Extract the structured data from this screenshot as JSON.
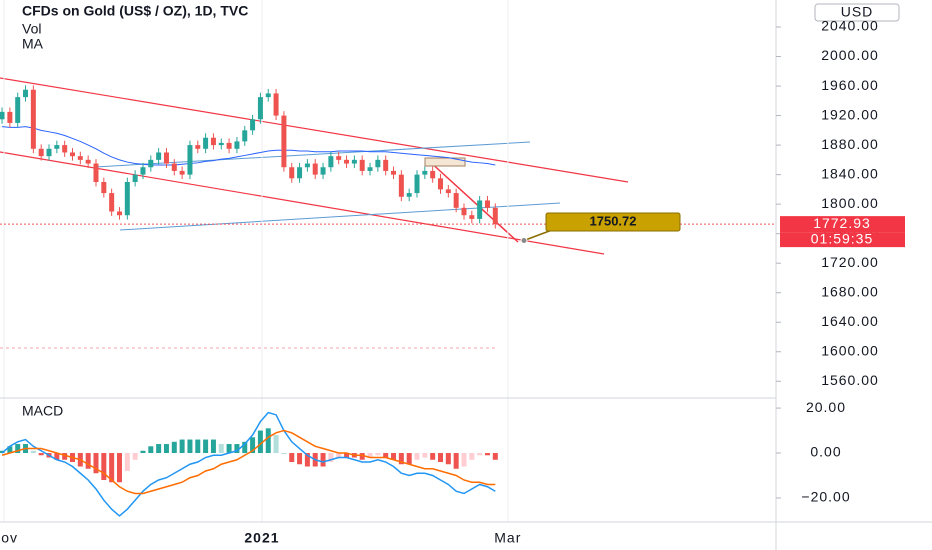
{
  "chart_data": [
    {
      "type": "candlestick",
      "title": "CFDs on Gold (US$ / OZ), 1D, TVC",
      "volume_label": "Vol",
      "currency": "USD",
      "up_color": "#26a69a",
      "down_color": "#ef5350",
      "open": [
        1915,
        1925,
        1910,
        1945,
        1955,
        1875,
        1865,
        1875,
        1880,
        1870,
        1865,
        1860,
        1855,
        1830,
        1815,
        1790,
        1785,
        1830,
        1840,
        1850,
        1860,
        1870,
        1855,
        1845,
        1840,
        1880,
        1875,
        1890,
        1880,
        1883,
        1875,
        1885,
        1900,
        1915,
        1945,
        1950,
        1920,
        1850,
        1835,
        1850,
        1855,
        1840,
        1850,
        1865,
        1860,
        1855,
        1860,
        1845,
        1850,
        1860,
        1845,
        1840,
        1810,
        1815,
        1840,
        1845,
        1835,
        1820,
        1815,
        1795,
        1785,
        1780,
        1805,
        1795
      ],
      "high": [
        1931,
        1931,
        1951,
        1961,
        1961,
        1881,
        1881,
        1886,
        1886,
        1876,
        1871,
        1866,
        1861,
        1836,
        1821,
        1796,
        1836,
        1846,
        1856,
        1866,
        1876,
        1876,
        1861,
        1851,
        1886,
        1886,
        1896,
        1896,
        1889,
        1889,
        1891,
        1906,
        1921,
        1951,
        1956,
        1956,
        1926,
        1856,
        1856,
        1861,
        1861,
        1856,
        1871,
        1871,
        1866,
        1866,
        1866,
        1856,
        1866,
        1866,
        1851,
        1846,
        1821,
        1846,
        1851,
        1851,
        1841,
        1826,
        1821,
        1801,
        1791,
        1811,
        1811,
        1801
      ],
      "low": [
        1909,
        1904,
        1904,
        1939,
        1869,
        1859,
        1859,
        1869,
        1864,
        1859,
        1854,
        1849,
        1824,
        1809,
        1784,
        1779,
        1779,
        1824,
        1834,
        1844,
        1854,
        1849,
        1839,
        1834,
        1834,
        1869,
        1869,
        1874,
        1874,
        1869,
        1869,
        1879,
        1894,
        1909,
        1939,
        1914,
        1844,
        1829,
        1829,
        1844,
        1834,
        1834,
        1844,
        1854,
        1849,
        1849,
        1839,
        1839,
        1844,
        1839,
        1834,
        1804,
        1804,
        1809,
        1834,
        1829,
        1814,
        1809,
        1789,
        1779,
        1774,
        1774,
        1789,
        1767
      ],
      "close": [
        1925,
        1910,
        1945,
        1955,
        1875,
        1865,
        1875,
        1880,
        1870,
        1865,
        1860,
        1855,
        1830,
        1815,
        1790,
        1785,
        1830,
        1840,
        1850,
        1860,
        1870,
        1855,
        1845,
        1840,
        1880,
        1875,
        1890,
        1880,
        1883,
        1875,
        1885,
        1900,
        1915,
        1945,
        1950,
        1920,
        1850,
        1835,
        1850,
        1855,
        1840,
        1850,
        1865,
        1860,
        1855,
        1860,
        1845,
        1850,
        1860,
        1845,
        1840,
        1810,
        1815,
        1840,
        1845,
        1835,
        1820,
        1815,
        1795,
        1785,
        1780,
        1805,
        1795,
        1773
      ],
      "series": [
        {
          "name": "MA",
          "color": "#2962ff",
          "values": [
            1905,
            1904,
            1904,
            1905,
            1903,
            1900,
            1898,
            1896,
            1893,
            1889,
            1885,
            1880,
            1875,
            1869,
            1864,
            1860,
            1857,
            1855,
            1854,
            1853,
            1853,
            1853,
            1853,
            1854,
            1855,
            1856,
            1858,
            1859,
            1861,
            1862,
            1864,
            1866,
            1868,
            1870,
            1872,
            1873,
            1873,
            1873,
            1872,
            1872,
            1871,
            1871,
            1871,
            1872,
            1872,
            1872,
            1872,
            1871,
            1871,
            1871,
            1870,
            1869,
            1868,
            1867,
            1866,
            1865,
            1864,
            1863,
            1861,
            1859,
            1857,
            1856,
            1855,
            1853
          ]
        }
      ],
      "last_price": 1772.93,
      "countdown": "01:59:35",
      "callout": 1750.72,
      "xlim": [
        -0.26,
        98.85
      ],
      "xticks": [
        {
          "value": 0.26,
          "label": "Nov"
        },
        {
          "value": 33.2,
          "label": "2021"
        },
        {
          "value": 64.6,
          "label": "Mar"
        }
      ],
      "ylim": [
        1541.4,
        2076.6
      ],
      "yticks": [
        {
          "value": 1560,
          "label": "1560.00"
        },
        {
          "value": 1600,
          "label": "1600.00"
        },
        {
          "value": 1640,
          "label": "1640.00"
        },
        {
          "value": 1680,
          "label": "1680.00"
        },
        {
          "value": 1720,
          "label": "1720.00"
        },
        {
          "value": 1760,
          "label": "1760.00"
        },
        {
          "value": 1800,
          "label": "1800.00"
        },
        {
          "value": 1840,
          "label": "1840.00"
        },
        {
          "value": 1880,
          "label": "1880.00"
        },
        {
          "value": 1920,
          "label": "1920.00"
        },
        {
          "value": 1960,
          "label": "1960.00"
        },
        {
          "value": 2000,
          "label": "2000.00"
        },
        {
          "value": 2040,
          "label": "2040.00"
        }
      ]
    },
    {
      "type": "macd",
      "title": "MACD",
      "macd": {
        "color": "#2196f3",
        "values": [
          0,
          3,
          5,
          6,
          3,
          1,
          -1,
          -3,
          -4,
          -6,
          -9,
          -12,
          -16,
          -21,
          -25,
          -28,
          -25,
          -21,
          -17,
          -14,
          -12,
          -11,
          -9,
          -7,
          -5,
          -4,
          -2,
          -1,
          -1,
          0,
          1,
          4,
          8,
          14,
          18,
          17,
          10,
          5,
          2,
          -1,
          -3,
          -4,
          -3,
          -2,
          -2,
          -3,
          -4,
          -4,
          -3,
          -4,
          -6,
          -9,
          -10,
          -9,
          -9,
          -10,
          -12,
          -14,
          -17,
          -18,
          -16,
          -14,
          -15,
          -17
        ]
      },
      "signal": {
        "color": "#ff6d00",
        "values": [
          -1,
          0,
          1,
          2,
          2,
          2,
          1,
          0,
          -1,
          -2,
          -3,
          -5,
          -7,
          -9,
          -12,
          -15,
          -17,
          -18,
          -18,
          -17,
          -16,
          -15,
          -14,
          -13,
          -11,
          -10,
          -8,
          -7,
          -5,
          -4,
          -3,
          -1,
          1,
          4,
          7,
          9,
          10,
          9,
          7,
          5,
          3,
          2,
          1,
          0,
          0,
          -1,
          -1,
          -2,
          -2,
          -2,
          -3,
          -4,
          -5,
          -6,
          -7,
          -7,
          -8,
          -9,
          -10,
          -12,
          -13,
          -13,
          -14,
          -14
        ]
      },
      "histogram": {
        "colors": {
          "pos_up": "#26a69a",
          "pos_down": "#b2dfdb",
          "neg_down": "#ef5350",
          "neg_up": "#ffcdd2"
        },
        "values": [
          1,
          3,
          4,
          4,
          1,
          -1,
          -2,
          -3,
          -3,
          -4,
          -6,
          -7,
          -9,
          -12,
          -13,
          -13,
          -8,
          -3,
          1,
          3,
          4,
          4,
          5,
          6,
          6,
          6,
          6,
          6,
          4,
          4,
          4,
          5,
          7,
          10,
          11,
          8,
          0,
          -4,
          -5,
          -6,
          -6,
          -6,
          -4,
          -2,
          -2,
          -2,
          -3,
          -2,
          -1,
          -2,
          -3,
          -5,
          -5,
          -3,
          -2,
          -3,
          -4,
          -5,
          -7,
          -6,
          -3,
          -1,
          -1,
          -3
        ]
      },
      "ylim": [
        -30.7,
        23.6
      ],
      "yticks": [
        {
          "value": 20,
          "label": "20.00"
        },
        {
          "value": 0,
          "label": "0.00"
        },
        {
          "value": -20,
          "label": "−20.00"
        }
      ]
    }
  ]
}
